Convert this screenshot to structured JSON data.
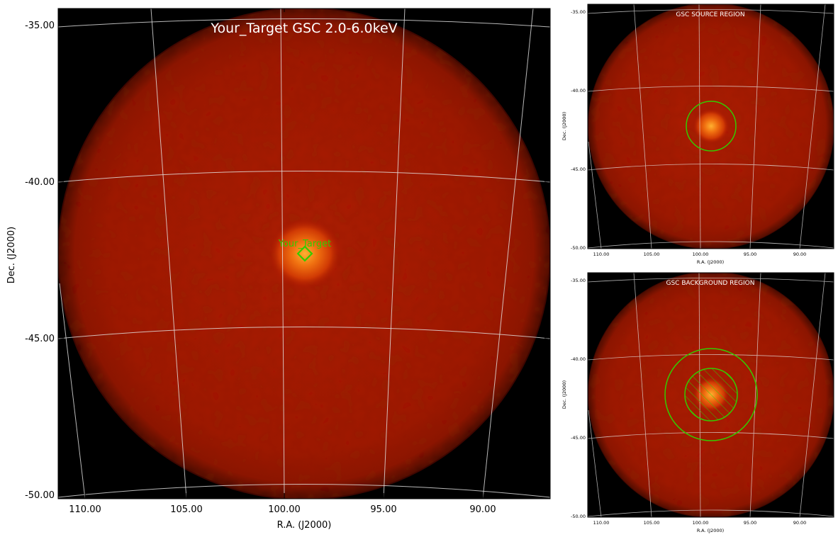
{
  "main_panel": {
    "title": "Your_Target GSC 2.0-6.0keV",
    "marker_label": "Your_Target",
    "xlabel": "R.A. (J2000)",
    "ylabel": "Dec. (J2000)",
    "x_ticks": [
      "110.00",
      "105.00",
      "100.00",
      "95.00",
      "90.00"
    ],
    "y_ticks": [
      "-35.00",
      "-40.00",
      "-45.00",
      "-50.00"
    ]
  },
  "source_panel": {
    "title": "GSC SOURCE REGION",
    "xlabel": "R.A. (J2000)",
    "ylabel": "Dec. (J2000)",
    "x_ticks": [
      "110.00",
      "105.00",
      "100.00",
      "95.00",
      "90.00"
    ],
    "y_ticks": [
      "-35.00",
      "-40.00",
      "-45.00",
      "-50.00"
    ]
  },
  "background_panel": {
    "title": "GSC BACKGROUND REGION",
    "xlabel": "R.A. (J2000)",
    "ylabel": "Dec. (J2000)",
    "x_ticks": [
      "110.00",
      "105.00",
      "100.00",
      "95.00",
      "90.00"
    ],
    "y_ticks": [
      "-35.00",
      "-40.00",
      "-45.00",
      "-50.00"
    ]
  },
  "colors": {
    "frame": "#000000",
    "field_red": "#a81400",
    "source_core": "#ff9a1a",
    "region_green": "#33cc00",
    "grid": "#e0e0e0",
    "title_text": "#ffffff"
  }
}
